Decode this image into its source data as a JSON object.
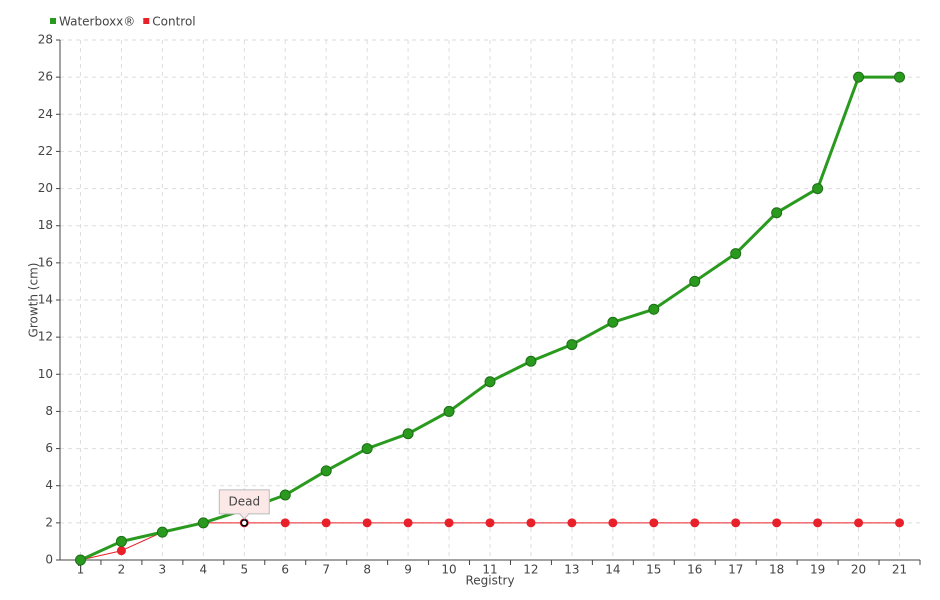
{
  "chart_data": {
    "type": "line",
    "x_label": "Registry",
    "y_label": "Growth (cm)",
    "categories": [
      "1",
      "2",
      "3",
      "4",
      "5",
      "6",
      "7",
      "8",
      "9",
      "10",
      "11",
      "12",
      "13",
      "14",
      "15",
      "16",
      "17",
      "18",
      "19",
      "20",
      "21"
    ],
    "series": [
      {
        "name": "Waterboxx®",
        "color": "#2a9a1f",
        "values": [
          0,
          1.0,
          1.5,
          2.0,
          2.7,
          3.5,
          4.8,
          6.0,
          6.8,
          8.0,
          9.6,
          10.7,
          11.6,
          12.8,
          13.5,
          15.0,
          16.5,
          18.7,
          20.0,
          26.0,
          26.0
        ]
      },
      {
        "name": "Control",
        "color": "#e8202a",
        "values": [
          0,
          0.5,
          1.5,
          2,
          2,
          2,
          2,
          2,
          2,
          2,
          2,
          2,
          2,
          2,
          2,
          2,
          2,
          2,
          2,
          2,
          2
        ]
      }
    ],
    "annotation": "Dead",
    "ylim": [
      0,
      28
    ],
    "yticks": [
      0,
      2,
      4,
      6,
      8,
      10,
      12,
      14,
      16,
      18,
      20,
      22,
      24,
      26,
      28
    ],
    "grid": true,
    "legend": "top-left"
  }
}
